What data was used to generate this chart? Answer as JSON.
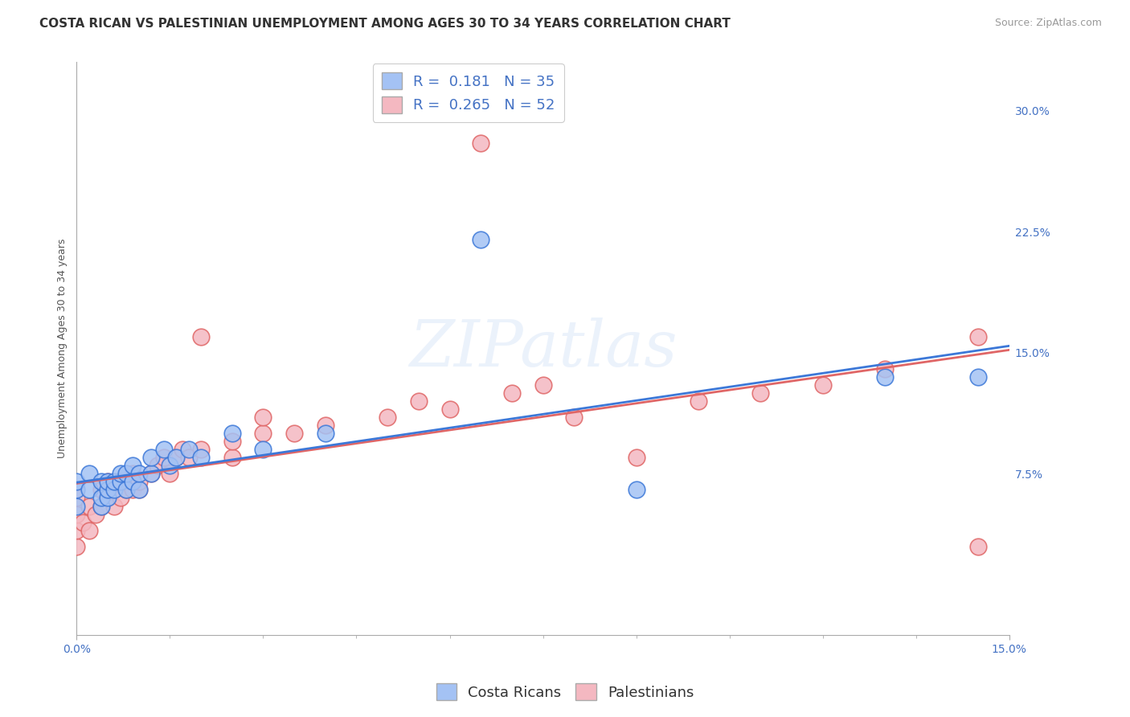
{
  "title": "COSTA RICAN VS PALESTINIAN UNEMPLOYMENT AMONG AGES 30 TO 34 YEARS CORRELATION CHART",
  "source": "Source: ZipAtlas.com",
  "ylabel": "Unemployment Among Ages 30 to 34 years",
  "xlim": [
    0.0,
    0.15
  ],
  "ylim": [
    -0.025,
    0.33
  ],
  "yticks": [
    0.0,
    0.075,
    0.15,
    0.225,
    0.3
  ],
  "ytick_labels": [
    "",
    "7.5%",
    "15.0%",
    "22.5%",
    "30.0%"
  ],
  "xticks": [
    0.0,
    0.15
  ],
  "xtick_labels": [
    "0.0%",
    "15.0%"
  ],
  "cr_R": 0.181,
  "cr_N": 35,
  "pal_R": 0.265,
  "pal_N": 52,
  "blue_color": "#a4c2f4",
  "pink_color": "#f4b8c1",
  "blue_line_color": "#3c78d8",
  "pink_line_color": "#e06666",
  "watermark": "ZIPatlas",
  "background_color": "#ffffff",
  "grid_color": "#cccccc",
  "cr_scatter_x": [
    0.0,
    0.0,
    0.0,
    0.002,
    0.002,
    0.004,
    0.004,
    0.004,
    0.005,
    0.005,
    0.005,
    0.006,
    0.006,
    0.007,
    0.007,
    0.008,
    0.008,
    0.009,
    0.009,
    0.01,
    0.01,
    0.012,
    0.012,
    0.014,
    0.015,
    0.016,
    0.018,
    0.02,
    0.025,
    0.03,
    0.04,
    0.065,
    0.09,
    0.13,
    0.145
  ],
  "cr_scatter_y": [
    0.055,
    0.065,
    0.07,
    0.065,
    0.075,
    0.055,
    0.06,
    0.07,
    0.06,
    0.065,
    0.07,
    0.065,
    0.07,
    0.07,
    0.075,
    0.065,
    0.075,
    0.07,
    0.08,
    0.065,
    0.075,
    0.075,
    0.085,
    0.09,
    0.08,
    0.085,
    0.09,
    0.085,
    0.1,
    0.09,
    0.1,
    0.22,
    0.065,
    0.135,
    0.135
  ],
  "pal_scatter_x": [
    0.0,
    0.0,
    0.0,
    0.0,
    0.001,
    0.002,
    0.002,
    0.003,
    0.004,
    0.004,
    0.005,
    0.005,
    0.005,
    0.006,
    0.006,
    0.007,
    0.007,
    0.008,
    0.008,
    0.009,
    0.009,
    0.01,
    0.01,
    0.012,
    0.013,
    0.014,
    0.015,
    0.016,
    0.017,
    0.018,
    0.02,
    0.02,
    0.025,
    0.025,
    0.03,
    0.03,
    0.035,
    0.04,
    0.05,
    0.055,
    0.06,
    0.065,
    0.07,
    0.075,
    0.08,
    0.09,
    0.1,
    0.11,
    0.12,
    0.13,
    0.145,
    0.145
  ],
  "pal_scatter_y": [
    0.03,
    0.04,
    0.05,
    0.06,
    0.045,
    0.04,
    0.055,
    0.05,
    0.055,
    0.065,
    0.06,
    0.065,
    0.07,
    0.055,
    0.065,
    0.06,
    0.07,
    0.065,
    0.07,
    0.065,
    0.075,
    0.065,
    0.07,
    0.075,
    0.08,
    0.085,
    0.075,
    0.085,
    0.09,
    0.085,
    0.16,
    0.09,
    0.085,
    0.095,
    0.1,
    0.11,
    0.1,
    0.105,
    0.11,
    0.12,
    0.115,
    0.28,
    0.125,
    0.13,
    0.11,
    0.085,
    0.12,
    0.125,
    0.13,
    0.14,
    0.03,
    0.16
  ],
  "title_fontsize": 11,
  "axis_label_fontsize": 9,
  "tick_fontsize": 10,
  "legend_fontsize": 13,
  "source_fontsize": 9
}
